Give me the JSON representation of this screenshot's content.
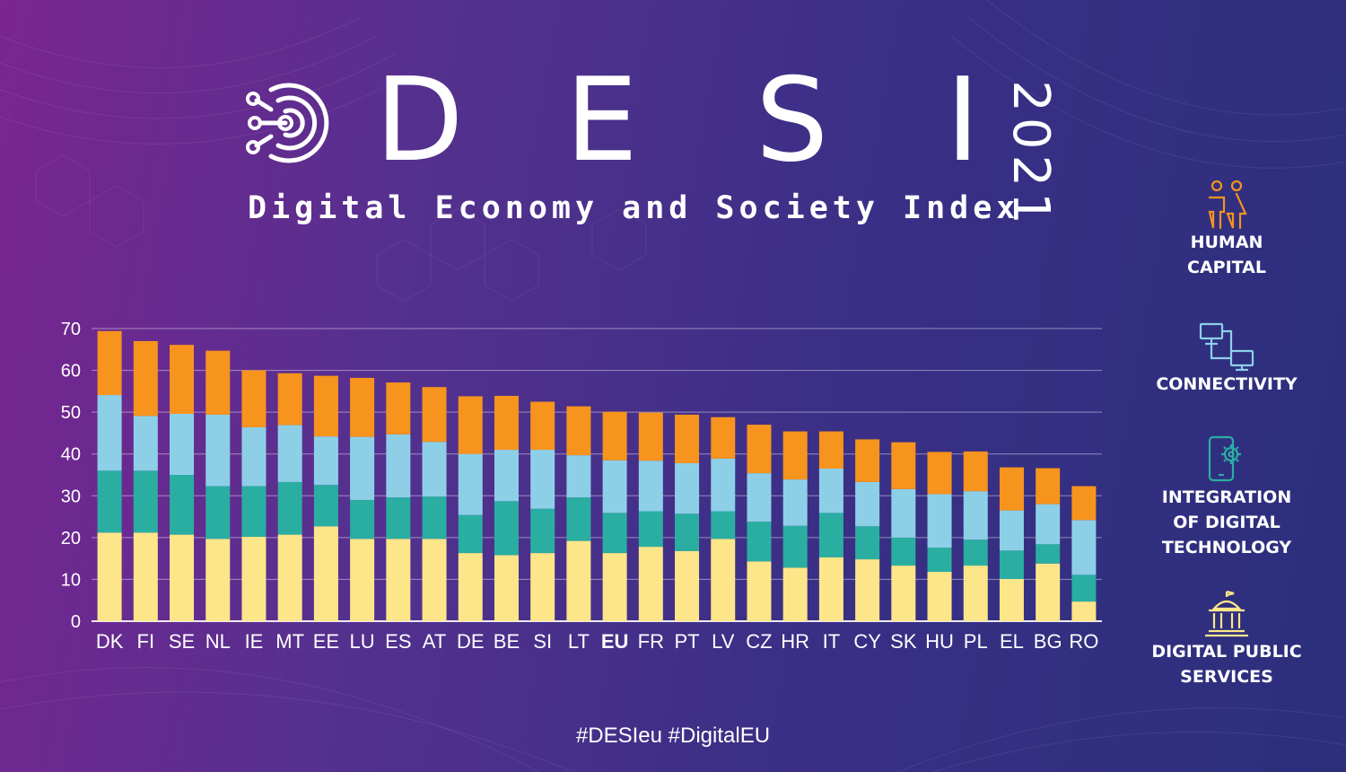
{
  "header": {
    "title_letters": [
      "D",
      "E",
      "S",
      "I"
    ],
    "subtitle": "Digital Economy and Society Index",
    "year": "2021"
  },
  "colors": {
    "human_capital": "#f7941d",
    "connectivity": "#8ecfe8",
    "integration": "#2aaea2",
    "digital_public_services": "#fde68a"
  },
  "legend": {
    "items": [
      {
        "label": "HUMAN\nCAPITAL",
        "icon": "people-icon"
      },
      {
        "label": "CONNECTIVITY",
        "icon": "network-icon"
      },
      {
        "label": "INTEGRATION\nOF DIGITAL\nTECHNOLOGY",
        "icon": "phone-gear-icon"
      },
      {
        "label": "DIGITAL PUBLIC\nSERVICES",
        "icon": "government-building-icon"
      }
    ]
  },
  "footer": {
    "hashtags": "#DESIeu  #DigitalEU"
  },
  "chart_data": {
    "type": "bar",
    "stacked": true,
    "categories": [
      "DK",
      "FI",
      "SE",
      "NL",
      "IE",
      "MT",
      "EE",
      "LU",
      "ES",
      "AT",
      "DE",
      "BE",
      "SI",
      "LT",
      "EU",
      "FR",
      "PT",
      "LV",
      "CZ",
      "HR",
      "IT",
      "CY",
      "SK",
      "HU",
      "PL",
      "EL",
      "BG",
      "RO"
    ],
    "highlight_category": "EU",
    "yticks": [
      0,
      10,
      20,
      30,
      40,
      50,
      60,
      70
    ],
    "ylim": [
      0,
      70
    ],
    "grid": true,
    "series": [
      {
        "color_key": "digital_public_services",
        "values": [
          21.2,
          21.2,
          20.7,
          19.7,
          20.2,
          20.7,
          22.7,
          19.7,
          19.7,
          19.7,
          16.3,
          15.8,
          16.3,
          19.2,
          16.3,
          17.8,
          16.8,
          19.7,
          14.3,
          12.8,
          15.3,
          14.8,
          13.3,
          11.8,
          13.3,
          10.1,
          13.8,
          4.7
        ]
      },
      {
        "color_key": "integration",
        "values": [
          14.8,
          14.8,
          14.3,
          12.6,
          12.1,
          12.6,
          9.9,
          9.3,
          9.9,
          10.1,
          9.1,
          12.9,
          10.6,
          10.4,
          9.6,
          8.5,
          8.9,
          6.6,
          9.5,
          10.0,
          10.6,
          7.9,
          6.7,
          5.8,
          6.2,
          6.8,
          4.6,
          6.4
        ]
      },
      {
        "color_key": "connectivity",
        "values": [
          18.1,
          13.1,
          14.6,
          17.1,
          14.1,
          13.6,
          11.6,
          15.1,
          15.1,
          13.1,
          14.6,
          12.3,
          14.1,
          10.1,
          12.6,
          12.1,
          12.1,
          12.6,
          11.6,
          11.1,
          10.6,
          10.6,
          11.6,
          12.8,
          11.6,
          9.6,
          9.6,
          13.1
        ]
      },
      {
        "color_key": "human_capital",
        "values": [
          15.3,
          17.9,
          16.5,
          15.3,
          13.6,
          12.4,
          14.5,
          14.1,
          12.4,
          13.1,
          13.8,
          12.9,
          11.5,
          11.7,
          11.6,
          11.5,
          11.6,
          9.9,
          11.6,
          11.5,
          8.9,
          10.2,
          11.2,
          10.1,
          9.5,
          10.3,
          8.6,
          8.1
        ]
      }
    ]
  }
}
